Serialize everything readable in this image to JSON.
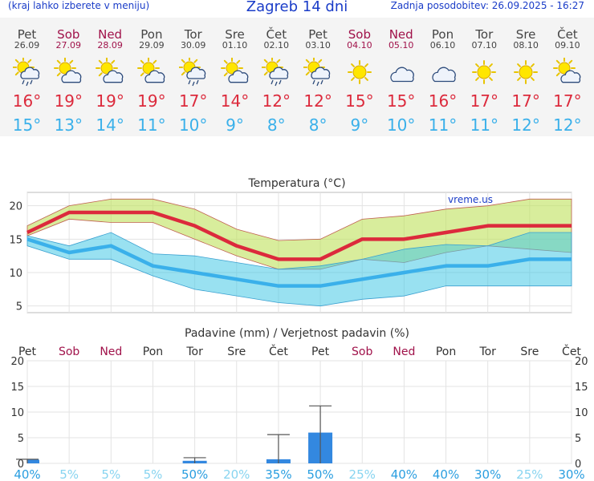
{
  "header": {
    "menu_hint": "(kraj lahko izberete v meniju)",
    "title": "Zagreb 14 dni",
    "last_update": "Zadnja posodobitev: 26.09.2025 - 16:27"
  },
  "colors": {
    "accent_blue": "#1a3cc8",
    "max_red": "#dc2a3c",
    "min_blue": "#3ab0ea",
    "weekend": "#a0124a",
    "weekday": "#444444"
  },
  "days": [
    {
      "name": "Pet",
      "date": "26.09",
      "weekend": false,
      "icon": "sun-cloud-rain-icon",
      "max": "16",
      "min": "15"
    },
    {
      "name": "Sob",
      "date": "27.09",
      "weekend": true,
      "icon": "sun-cloud-icon",
      "max": "19",
      "min": "13"
    },
    {
      "name": "Ned",
      "date": "28.09",
      "weekend": true,
      "icon": "sun-cloud-icon",
      "max": "19",
      "min": "14"
    },
    {
      "name": "Pon",
      "date": "29.09",
      "weekend": false,
      "icon": "sun-cloud-icon",
      "max": "19",
      "min": "11"
    },
    {
      "name": "Tor",
      "date": "30.09",
      "weekend": false,
      "icon": "sun-cloud-rain-icon",
      "max": "17",
      "min": "10"
    },
    {
      "name": "Sre",
      "date": "01.10",
      "weekend": false,
      "icon": "sun-cloud-icon",
      "max": "14",
      "min": "9"
    },
    {
      "name": "Čet",
      "date": "02.10",
      "weekend": false,
      "icon": "sun-cloud-rain-icon",
      "max": "12",
      "min": "8"
    },
    {
      "name": "Pet",
      "date": "03.10",
      "weekend": false,
      "icon": "sun-cloud-rain-icon",
      "max": "12",
      "min": "8"
    },
    {
      "name": "Sob",
      "date": "04.10",
      "weekend": true,
      "icon": "sun-icon",
      "max": "15",
      "min": "9"
    },
    {
      "name": "Ned",
      "date": "05.10",
      "weekend": true,
      "icon": "cloud-icon",
      "max": "15",
      "min": "10"
    },
    {
      "name": "Pon",
      "date": "06.10",
      "weekend": false,
      "icon": "cloud-icon",
      "max": "16",
      "min": "11"
    },
    {
      "name": "Tor",
      "date": "07.10",
      "weekend": false,
      "icon": "sun-icon",
      "max": "17",
      "min": "11"
    },
    {
      "name": "Sre",
      "date": "08.10",
      "weekend": false,
      "icon": "sun-icon",
      "max": "17",
      "min": "12"
    },
    {
      "name": "Čet",
      "date": "09.10",
      "weekend": false,
      "icon": "sun-cloud-icon",
      "max": "17",
      "min": "12"
    }
  ],
  "chart_data": [
    {
      "type": "line",
      "title": "Temperatura (°C)",
      "watermark": "vreme.us",
      "x": [
        "26.09",
        "27.09",
        "28.09",
        "29.09",
        "30.09",
        "01.10",
        "02.10",
        "03.10",
        "04.10",
        "05.10",
        "06.10",
        "07.10",
        "08.10",
        "09.10"
      ],
      "ylim": [
        4,
        22
      ],
      "yticks": [
        5,
        10,
        15,
        20
      ],
      "grid": true,
      "series": [
        {
          "values": [
            16,
            19,
            19,
            19,
            17,
            14,
            12,
            12,
            15,
            15,
            16,
            17,
            17,
            17
          ]
        },
        {
          "values": [
            15,
            13,
            14,
            11,
            10,
            9,
            8,
            8,
            9,
            10,
            11,
            11,
            12,
            12
          ]
        }
      ],
      "bands": [
        {
          "lower": [
            15.5,
            18,
            17.5,
            17.5,
            15,
            12.5,
            10.5,
            10.5,
            12,
            11.5,
            13,
            14,
            13.5,
            13
          ],
          "upper": [
            17,
            20,
            21,
            21,
            19.5,
            16.5,
            14.8,
            15,
            18,
            18.5,
            19.5,
            20,
            21,
            21
          ]
        },
        {
          "lower": [
            14,
            12,
            12,
            9.5,
            7.5,
            6.5,
            5.5,
            5,
            6,
            6.5,
            8,
            8,
            8,
            8
          ],
          "upper": [
            15.5,
            14,
            16,
            12.8,
            12.5,
            11.5,
            10.5,
            11,
            12,
            13.5,
            14.2,
            14,
            16,
            16
          ]
        }
      ]
    },
    {
      "type": "bar",
      "title": "Padavine (mm) / Verjetnost padavin (%)",
      "categories": [
        "Pet",
        "Sob",
        "Ned",
        "Pon",
        "Tor",
        "Sre",
        "Čet",
        "Pet",
        "Sob",
        "Ned",
        "Pon",
        "Tor",
        "Sre",
        "Čet"
      ],
      "weekend": [
        false,
        true,
        true,
        false,
        false,
        false,
        false,
        false,
        true,
        true,
        false,
        false,
        false,
        false
      ],
      "values": [
        0.7,
        0,
        0,
        0,
        0.5,
        0,
        0.8,
        6,
        0,
        0,
        0,
        0,
        0,
        0
      ],
      "error_high": [
        0.8,
        0,
        0,
        0,
        1.1,
        0,
        5.6,
        11.2,
        0,
        0,
        0,
        0,
        0,
        0
      ],
      "probability": [
        "40%",
        "5%",
        "5%",
        "5%",
        "50%",
        "20%",
        "35%",
        "50%",
        "25%",
        "40%",
        "40%",
        "30%",
        "25%",
        "30%"
      ],
      "probability_strong": [
        true,
        false,
        false,
        false,
        true,
        false,
        true,
        true,
        false,
        true,
        true,
        true,
        false,
        true
      ],
      "ylim": [
        0,
        20
      ],
      "yticks": [
        0,
        5,
        10,
        15,
        20
      ],
      "grid": true
    }
  ]
}
